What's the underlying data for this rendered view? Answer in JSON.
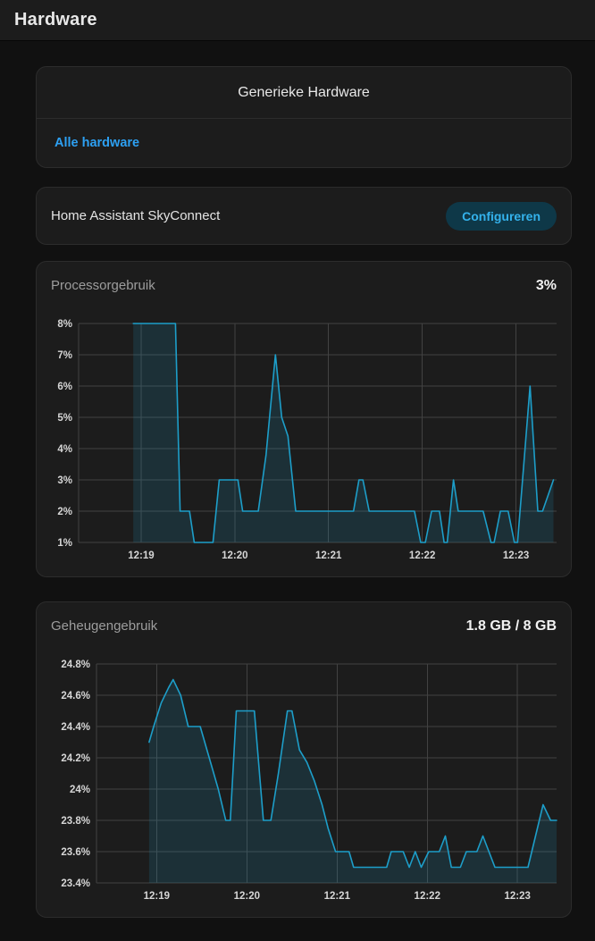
{
  "header": {
    "title": "Hardware"
  },
  "colors": {
    "accent_link": "#2da0f2",
    "button_bg": "#0e3848",
    "button_text": "#34b2ec",
    "chart_line": "#1d9ec9",
    "chart_fill": "rgba(29,158,201,0.16)",
    "grid": "#424242",
    "tick_text": "#d6d6d6",
    "card_bg": "#1c1c1c",
    "page_bg": "#111111"
  },
  "cards": {
    "generic_hardware": {
      "title": "Generieke Hardware",
      "link_label": "Alle hardware"
    },
    "skyconnect": {
      "device_name": "Home Assistant SkyConnect",
      "configure_label": "Configureren"
    },
    "cpu": {
      "title": "Processorgebruik",
      "current_value": "3%"
    },
    "memory": {
      "title": "Geheugengebruik",
      "current_value": "1.8 GB / 8 GB"
    }
  },
  "chart_data": [
    {
      "id": "cpu",
      "type": "area",
      "title": "Processorgebruik",
      "x_unit": "seconds_after_12:18",
      "xlim": [
        20,
        326
      ],
      "ylim": [
        1,
        8
      ],
      "grid": true,
      "x_ticks": [
        {
          "t": 60,
          "label": "12:19"
        },
        {
          "t": 120,
          "label": "12:20"
        },
        {
          "t": 180,
          "label": "12:21"
        },
        {
          "t": 240,
          "label": "12:22"
        },
        {
          "t": 300,
          "label": "12:23"
        }
      ],
      "y_ticks": [
        {
          "v": 1,
          "label": "1%"
        },
        {
          "v": 2,
          "label": "2%"
        },
        {
          "v": 3,
          "label": "3%"
        },
        {
          "v": 4,
          "label": "4%"
        },
        {
          "v": 5,
          "label": "5%"
        },
        {
          "v": 6,
          "label": "6%"
        },
        {
          "v": 7,
          "label": "7%"
        },
        {
          "v": 8,
          "label": "8%"
        }
      ],
      "points": [
        [
          55,
          8
        ],
        [
          82,
          8
        ],
        [
          85,
          2
        ],
        [
          91,
          2
        ],
        [
          94,
          1
        ],
        [
          106,
          1
        ],
        [
          110,
          3
        ],
        [
          122,
          3
        ],
        [
          125,
          2
        ],
        [
          135,
          2
        ],
        [
          140,
          3.8
        ],
        [
          146,
          7
        ],
        [
          150,
          5
        ],
        [
          154,
          4.4
        ],
        [
          159,
          2
        ],
        [
          196,
          2
        ],
        [
          199.5,
          3
        ],
        [
          202,
          3
        ],
        [
          206,
          2
        ],
        [
          235,
          2
        ],
        [
          239,
          1
        ],
        [
          242,
          1
        ],
        [
          246,
          2
        ],
        [
          251,
          2
        ],
        [
          254,
          1
        ],
        [
          256,
          1
        ],
        [
          260,
          3
        ],
        [
          263,
          2
        ],
        [
          279,
          2
        ],
        [
          284,
          1
        ],
        [
          286,
          1
        ],
        [
          290,
          2
        ],
        [
          295,
          2
        ],
        [
          299,
          1
        ],
        [
          301,
          1
        ],
        [
          309,
          6
        ],
        [
          314,
          2
        ],
        [
          317,
          2
        ],
        [
          324,
          3
        ]
      ]
    },
    {
      "id": "memory",
      "type": "area",
      "title": "Geheugengebruik",
      "x_unit": "seconds_after_12:18",
      "xlim": [
        20,
        326
      ],
      "ylim": [
        23.4,
        24.8
      ],
      "grid": true,
      "x_ticks": [
        {
          "t": 60,
          "label": "12:19"
        },
        {
          "t": 120,
          "label": "12:20"
        },
        {
          "t": 180,
          "label": "12:21"
        },
        {
          "t": 240,
          "label": "12:22"
        },
        {
          "t": 300,
          "label": "12:23"
        }
      ],
      "y_ticks": [
        {
          "v": 23.4,
          "label": "23.4%"
        },
        {
          "v": 23.6,
          "label": "23.6%"
        },
        {
          "v": 23.8,
          "label": "23.8%"
        },
        {
          "v": 24,
          "label": "24%"
        },
        {
          "v": 24.2,
          "label": "24.2%"
        },
        {
          "v": 24.4,
          "label": "24.4%"
        },
        {
          "v": 24.6,
          "label": "24.6%"
        },
        {
          "v": 24.8,
          "label": "24.8%"
        }
      ],
      "points": [
        [
          55,
          24.3
        ],
        [
          58,
          24.4
        ],
        [
          63,
          24.55
        ],
        [
          68,
          24.65
        ],
        [
          71,
          24.7
        ],
        [
          76,
          24.6
        ],
        [
          81,
          24.4
        ],
        [
          89,
          24.4
        ],
        [
          95,
          24.2
        ],
        [
          101,
          24.0
        ],
        [
          106,
          23.8
        ],
        [
          109,
          23.8
        ],
        [
          113,
          24.5
        ],
        [
          125,
          24.5
        ],
        [
          131,
          23.8
        ],
        [
          136,
          23.8
        ],
        [
          141,
          24.1
        ],
        [
          147,
          24.5
        ],
        [
          150,
          24.5
        ],
        [
          155,
          24.25
        ],
        [
          160,
          24.17
        ],
        [
          165,
          24.05
        ],
        [
          170,
          23.9
        ],
        [
          174,
          23.75
        ],
        [
          179,
          23.6
        ],
        [
          188,
          23.6
        ],
        [
          191,
          23.5
        ],
        [
          213,
          23.5
        ],
        [
          216,
          23.6
        ],
        [
          224,
          23.6
        ],
        [
          228,
          23.5
        ],
        [
          232,
          23.6
        ],
        [
          236,
          23.5
        ],
        [
          241,
          23.6
        ],
        [
          248,
          23.6
        ],
        [
          252,
          23.7
        ],
        [
          256,
          23.5
        ],
        [
          262,
          23.5
        ],
        [
          266,
          23.6
        ],
        [
          273,
          23.6
        ],
        [
          277,
          23.7
        ],
        [
          285,
          23.5
        ],
        [
          307,
          23.5
        ],
        [
          317,
          23.9
        ],
        [
          322,
          23.8
        ],
        [
          326,
          23.8
        ]
      ]
    }
  ]
}
